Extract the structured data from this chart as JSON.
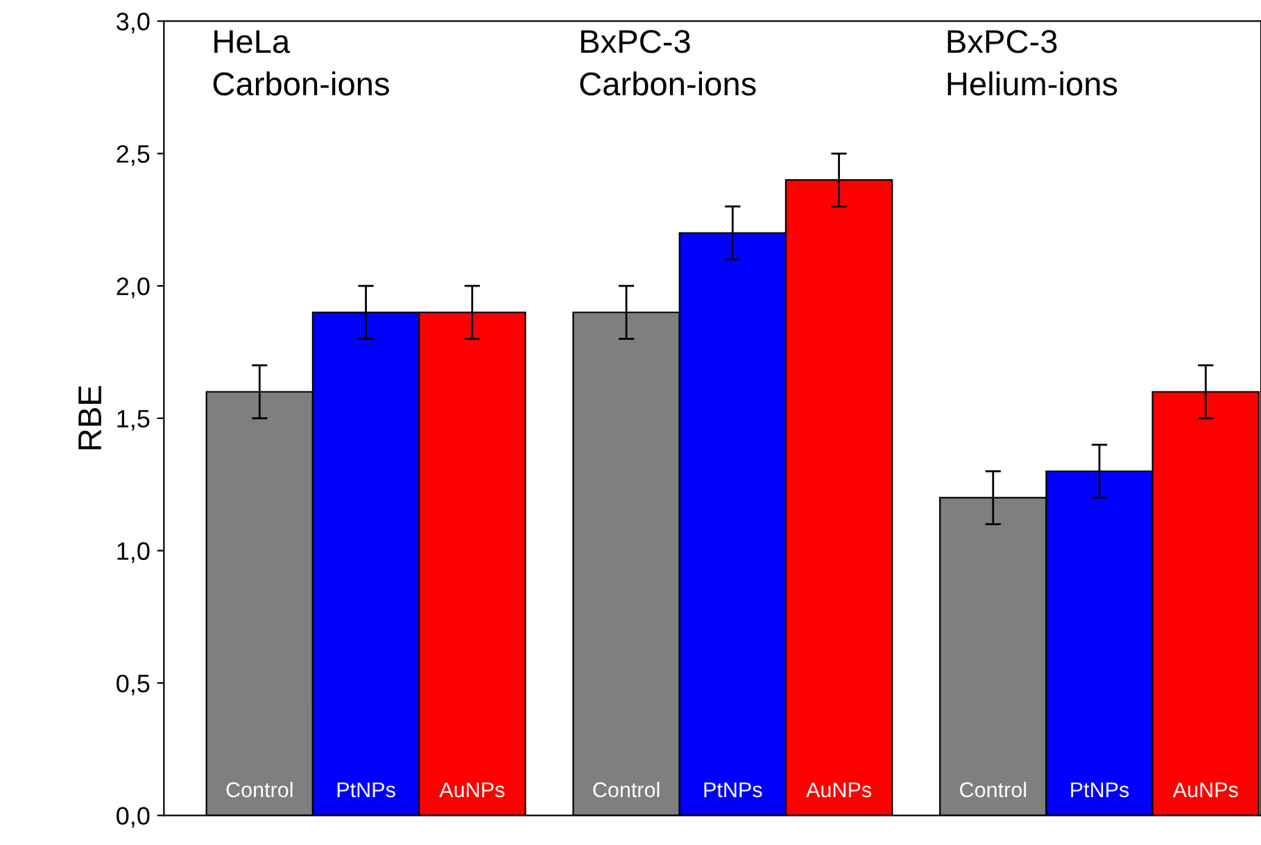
{
  "chart_data": {
    "type": "bar",
    "ylabel": "RBE",
    "categories": [
      "Control",
      "PtNPs",
      "AuNPs",
      "Control",
      "PtNPs",
      "AuNPs",
      "Control",
      "PtNPs",
      "AuNPs"
    ],
    "values": [
      1.6,
      1.9,
      1.9,
      1.9,
      2.2,
      2.4,
      1.2,
      1.3,
      1.6
    ],
    "errors": [
      0.1,
      0.1,
      0.1,
      0.1,
      0.1,
      0.1,
      0.1,
      0.1,
      0.1
    ],
    "colors": [
      "#7f7f7f",
      "#0000ff",
      "#ff0000",
      "#7f7f7f",
      "#0000ff",
      "#ff0000",
      "#7f7f7f",
      "#0000ff",
      "#ff0000"
    ],
    "annotations": [
      "HeLa\nCarbon-ions",
      "BxPC-3\nCarbon-ions",
      "BxPC-3\nHelium-ions"
    ],
    "ylim": [
      0,
      3
    ],
    "yticks": [
      {
        "value": 0,
        "label": "0,0"
      },
      {
        "value": 0.5,
        "label": "0,5"
      },
      {
        "value": 1,
        "label": "1,0"
      },
      {
        "value": 1.5,
        "label": "1,5"
      },
      {
        "value": 2,
        "label": "2,0"
      },
      {
        "value": 2.5,
        "label": "2,5"
      },
      {
        "value": 3,
        "label": "3,0"
      }
    ],
    "grid": false,
    "legend": false
  }
}
